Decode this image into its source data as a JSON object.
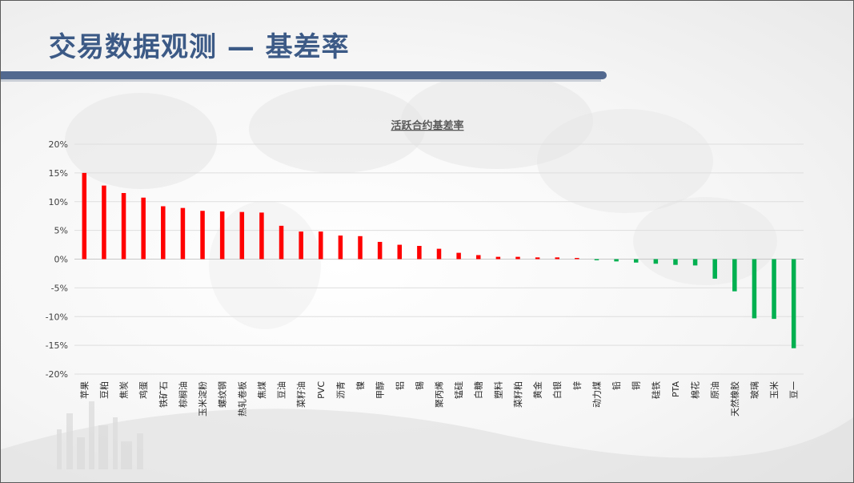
{
  "page": {
    "title": "交易数据观测 — 基差率"
  },
  "colors": {
    "positive": "#ff0000",
    "negative": "#00b050",
    "title": "#3c5a86",
    "title_bar": "#52698f"
  },
  "chart_data": {
    "type": "bar",
    "title": "活跃合约基差率",
    "xlabel": "",
    "ylabel": "",
    "ylim": [
      -20,
      20
    ],
    "y_ticks": [
      "20%",
      "15%",
      "10%",
      "5%",
      "0%",
      "-5%",
      "-10%",
      "-15%",
      "-20%"
    ],
    "y_tick_values": [
      20,
      15,
      10,
      5,
      0,
      -5,
      -10,
      -15,
      -20
    ],
    "grid": true,
    "legend": "none",
    "categories": [
      "苹果",
      "豆粕",
      "焦炭",
      "鸡蛋",
      "铁矿石",
      "棕榈油",
      "玉米淀粉",
      "螺纹钢",
      "热轧卷板",
      "焦煤",
      "豆油",
      "菜籽油",
      "PVC",
      "沥青",
      "镍",
      "甲醇",
      "铝",
      "锡",
      "聚丙烯",
      "锰硅",
      "白糖",
      "塑料",
      "菜籽粕",
      "黄金",
      "白银",
      "锌",
      "动力煤",
      "铅",
      "铜",
      "硅铁",
      "PTA",
      "棉花",
      "原油",
      "天然橡胶",
      "玻璃",
      "玉米",
      "豆一"
    ],
    "values": [
      15.0,
      12.8,
      11.5,
      10.7,
      9.2,
      8.9,
      8.4,
      8.3,
      8.2,
      8.1,
      5.8,
      4.8,
      4.8,
      4.1,
      4.0,
      3.0,
      2.5,
      2.3,
      1.8,
      1.1,
      0.7,
      0.4,
      0.4,
      0.3,
      0.3,
      0.2,
      -0.2,
      -0.4,
      -0.6,
      -0.8,
      -1.0,
      -1.1,
      -3.4,
      -5.6,
      -10.3,
      -10.4,
      -15.5
    ]
  }
}
